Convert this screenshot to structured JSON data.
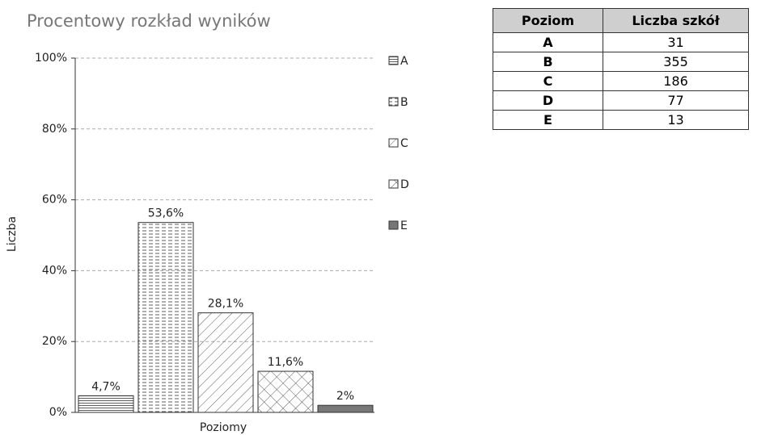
{
  "chart_data": {
    "type": "bar",
    "title": "Procentowy rozkład wyników",
    "x_label": "Poziomy",
    "y_label": "Liczba",
    "categories": [
      null
    ],
    "series": [
      {
        "name": "A",
        "color": "#333333",
        "pattern": "horizontal",
        "values": [
          4.7
        ],
        "value_labels": [
          "4,7%"
        ]
      },
      {
        "name": "B",
        "color": "#333333",
        "pattern": "dashed",
        "values": [
          53.6
        ],
        "value_labels": [
          "53,6%"
        ]
      },
      {
        "name": "C",
        "color": "#333333",
        "pattern": "diagonal",
        "values": [
          28.1
        ],
        "value_labels": [
          "28,1%"
        ]
      },
      {
        "name": "D",
        "color": "#333333",
        "pattern": "crosshatch",
        "values": [
          11.6
        ],
        "value_labels": [
          "11,6%"
        ]
      },
      {
        "name": "E",
        "color": "#777777",
        "pattern": "solid",
        "values": [
          2
        ],
        "value_labels": [
          "2%"
        ]
      }
    ],
    "ylim": [
      0,
      100
    ],
    "yticks": [
      {
        "value": 0,
        "label": "0%"
      },
      {
        "value": 20,
        "label": "20%"
      },
      {
        "value": 40,
        "label": "40%"
      },
      {
        "value": 60,
        "label": "60%"
      },
      {
        "value": 80,
        "label": "80%"
      },
      {
        "value": 100,
        "label": "100%"
      }
    ],
    "grid": true,
    "legend": "right"
  },
  "table": {
    "header": [
      "Poziom",
      "Liczba szkół"
    ],
    "rows": [
      [
        "A",
        "31"
      ],
      [
        "B",
        "355"
      ],
      [
        "C",
        "186"
      ],
      [
        "D",
        "77"
      ],
      [
        "E",
        "13"
      ]
    ]
  }
}
